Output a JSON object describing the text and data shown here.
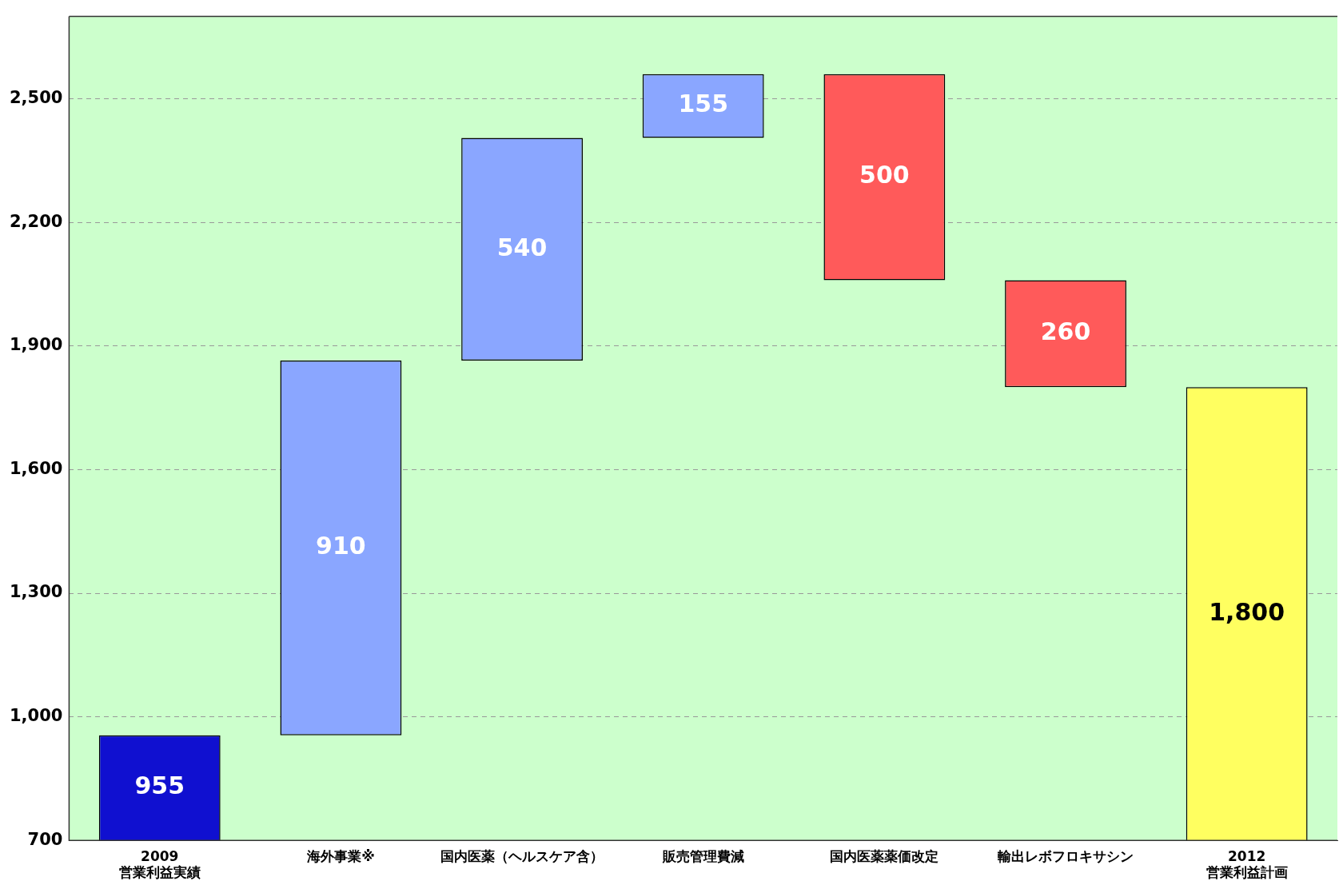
{
  "chart_data": {
    "type": "bar",
    "categories": [
      "2009\n営業利益実績",
      "海外事業※",
      "国内医薬（ヘルスケア含）",
      "販売管理費減",
      "国内医薬薬価改定",
      "輸出レボフロキサシン",
      "2012\n営業利益計画"
    ],
    "values": [
      955,
      910,
      540,
      155,
      -500,
      -260,
      1800
    ],
    "base": [
      null,
      955,
      1865,
      2405,
      2560,
      2060,
      null
    ],
    "colors": [
      "#1010d0",
      "#8aa6ff",
      "#8aa6ff",
      "#8aa6ff",
      "#ff5a5a",
      "#ff5a5a",
      "#ffff60"
    ],
    "value_labels": [
      "955",
      "910",
      "540",
      "155",
      "500",
      "260",
      "1,800"
    ],
    "ylim": [
      700,
      2700
    ],
    "yticks": [
      {
        "value": 700,
        "label": "700"
      },
      {
        "value": 1000,
        "label": "1,000"
      },
      {
        "value": 1300,
        "label": "1,300"
      },
      {
        "value": 1600,
        "label": "1,600"
      },
      {
        "value": 1900,
        "label": "1,900"
      },
      {
        "value": 2200,
        "label": "2,200"
      },
      {
        "value": 2500,
        "label": "2,500"
      }
    ],
    "grid": "y"
  }
}
